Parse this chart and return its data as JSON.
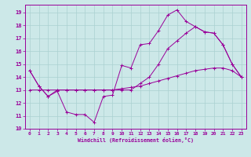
{
  "xlabel": "Windchill (Refroidissement éolien,°C)",
  "bg_color": "#cce8e8",
  "grid_color": "#aad0d0",
  "line_color": "#990099",
  "xlim": [
    -0.5,
    23.5
  ],
  "ylim": [
    10.0,
    19.6
  ],
  "yticks": [
    10,
    11,
    12,
    13,
    14,
    15,
    16,
    17,
    18,
    19
  ],
  "xticks": [
    0,
    1,
    2,
    3,
    4,
    5,
    6,
    7,
    8,
    9,
    10,
    11,
    12,
    13,
    14,
    15,
    16,
    17,
    18,
    19,
    20,
    21,
    22,
    23
  ],
  "line1_x": [
    0,
    1,
    2,
    3,
    4,
    5,
    6,
    7,
    8,
    9,
    10,
    11,
    12,
    13,
    14,
    15,
    16,
    17,
    18,
    19,
    20,
    21,
    22,
    23
  ],
  "line1_y": [
    14.5,
    13.3,
    12.5,
    12.9,
    11.3,
    11.1,
    11.1,
    10.5,
    12.5,
    12.6,
    14.9,
    14.7,
    16.5,
    16.6,
    17.6,
    18.8,
    19.2,
    18.3,
    17.9,
    17.5,
    17.4,
    16.5,
    15.0,
    14.0
  ],
  "line2_x": [
    0,
    1,
    2,
    3,
    4,
    5,
    6,
    7,
    8,
    9,
    10,
    11,
    12,
    13,
    14,
    15,
    16,
    17,
    18,
    19,
    20,
    21,
    22,
    23
  ],
  "line2_y": [
    14.5,
    13.3,
    12.5,
    13.0,
    13.0,
    13.0,
    13.0,
    13.0,
    13.0,
    13.0,
    13.0,
    13.0,
    13.5,
    14.0,
    15.0,
    16.2,
    16.8,
    17.4,
    17.9,
    17.5,
    17.4,
    16.5,
    15.0,
    14.0
  ],
  "line3_x": [
    0,
    1,
    2,
    3,
    4,
    5,
    6,
    7,
    8,
    9,
    10,
    11,
    12,
    13,
    14,
    15,
    16,
    17,
    18,
    19,
    20,
    21,
    22,
    23
  ],
  "line3_y": [
    13.0,
    13.0,
    13.0,
    13.0,
    13.0,
    13.0,
    13.0,
    13.0,
    13.0,
    13.0,
    13.1,
    13.2,
    13.3,
    13.5,
    13.7,
    13.9,
    14.1,
    14.3,
    14.5,
    14.6,
    14.7,
    14.7,
    14.5,
    14.0
  ]
}
